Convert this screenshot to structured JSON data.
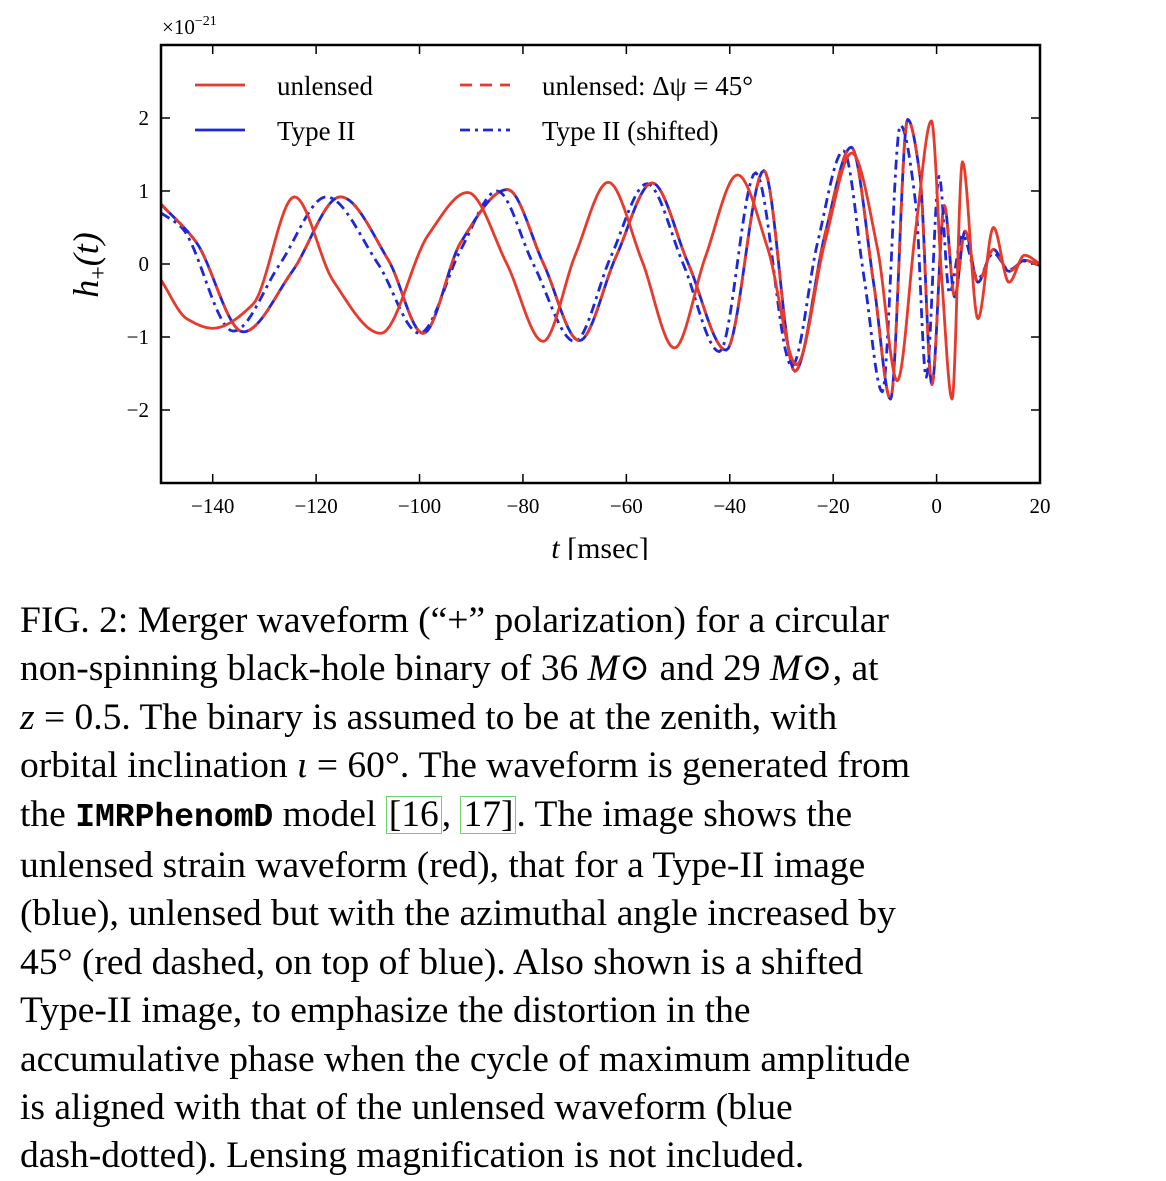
{
  "chart_data": {
    "type": "line",
    "x_label": "t [msec]",
    "y_label": "h+(t)",
    "y_multiplier": "×10−21",
    "xlim": [
      -150,
      20
    ],
    "ylim": [
      -3,
      3
    ],
    "x_ticks": [
      {
        "value": -140,
        "label": "−140"
      },
      {
        "value": -120,
        "label": "−120"
      },
      {
        "value": -100,
        "label": "−100"
      },
      {
        "value": -80,
        "label": "−80"
      },
      {
        "value": -60,
        "label": "−60"
      },
      {
        "value": -40,
        "label": "−40"
      },
      {
        "value": -20,
        "label": "−20"
      },
      {
        "value": 0,
        "label": "0"
      },
      {
        "value": 20,
        "label": "20"
      }
    ],
    "y_ticks": [
      {
        "value": 2,
        "label": "2"
      },
      {
        "value": 1,
        "label": "1"
      },
      {
        "value": 0,
        "label": "0"
      },
      {
        "value": -1,
        "label": "−1"
      },
      {
        "value": -2,
        "label": "−2"
      }
    ],
    "legend_position": "top-left",
    "series": [
      {
        "name": "unlensed",
        "color": "#e8392b",
        "style": "solid",
        "x": [
          -150,
          -145,
          -140,
          -132.2,
          -124.2,
          -116.7,
          -107.5,
          -98.3,
          -90.7,
          -83.1,
          -76.1,
          -69.9,
          -63.5,
          -57.0,
          -50.7,
          -44.7,
          -38.5,
          -32.6,
          -27.1,
          -21.6,
          -16.4,
          -11.4,
          -7.6,
          -4.0,
          -1.0,
          1.0,
          3.0,
          5.0,
          8.0,
          11.0,
          14.0,
          17.0,
          20.0
        ],
        "y": [
          -0.22,
          -0.75,
          -0.88,
          -0.55,
          0.92,
          -0.23,
          -0.95,
          0.4,
          0.98,
          0.0,
          -1.06,
          0.12,
          1.12,
          0.05,
          -1.15,
          0.1,
          1.22,
          0.2,
          -1.38,
          0.3,
          1.52,
          0.2,
          -1.6,
          0.5,
          1.96,
          -0.2,
          -1.85,
          1.4,
          -0.75,
          0.5,
          -0.25,
          0.12,
          0.0
        ]
      },
      {
        "name": "unlensed: Δψ = 45°",
        "color": "#e8392b",
        "style": "dashed",
        "x": [
          -150,
          -143.2,
          -134.1,
          -124.6,
          -115.3,
          -106.0,
          -99.3,
          -92.0,
          -83.0,
          -76.0,
          -69.1,
          -62.0,
          -55.0,
          -48.0,
          -40.7,
          -33.4,
          -27.4,
          -21.6,
          -16.5,
          -12.1,
          -8.9,
          -5.6,
          -3.2,
          -0.9,
          1.5,
          3.5,
          5.5,
          8.0,
          11.0,
          14.0,
          17.0,
          20.0
        ],
        "y": [
          0.82,
          0.3,
          -0.93,
          -0.1,
          0.92,
          0.05,
          -0.95,
          0.3,
          1.02,
          0.0,
          -1.05,
          0.1,
          1.11,
          0.0,
          -1.18,
          1.28,
          -1.47,
          0.4,
          1.6,
          -0.3,
          -1.85,
          1.98,
          1.2,
          -1.65,
          0.8,
          -0.45,
          0.45,
          -0.25,
          0.2,
          -0.1,
          0.05,
          -0.02
        ]
      },
      {
        "name": "Type II",
        "color": "#1f27d6",
        "style": "solid",
        "x": [
          -150,
          -143.2,
          -134.1,
          -124.6,
          -115.3,
          -106.0,
          -99.3,
          -92.0,
          -83.0,
          -76.0,
          -69.1,
          -62.0,
          -55.0,
          -48.0,
          -40.7,
          -33.4,
          -27.4,
          -21.6,
          -16.5,
          -12.1,
          -8.9,
          -5.6,
          -3.2,
          -0.9,
          1.5,
          3.5,
          5.5,
          8.0,
          11.0,
          14.0,
          17.0,
          20.0
        ],
        "y": [
          0.82,
          0.3,
          -0.93,
          -0.1,
          0.92,
          0.05,
          -0.95,
          0.3,
          1.02,
          0.0,
          -1.05,
          0.1,
          1.11,
          0.0,
          -1.18,
          1.28,
          -1.47,
          0.4,
          1.6,
          -0.3,
          -1.85,
          1.98,
          1.2,
          -1.65,
          0.8,
          -0.45,
          0.45,
          -0.25,
          0.2,
          -0.1,
          0.05,
          -0.02
        ]
      },
      {
        "name": "Type II (shifted)",
        "color": "#1f27d6",
        "style": "dashdot",
        "x": [
          -150,
          -146.0,
          -136.0,
          -127.0,
          -118.0,
          -108.0,
          -100.0,
          -92.0,
          -85.0,
          -78.0,
          -70.0,
          -63.0,
          -56.0,
          -49.0,
          -42.0,
          -35.0,
          -28.0,
          -23.0,
          -18.0,
          -14.0,
          -10.5,
          -7.0,
          -4.0,
          -2.0,
          0.5,
          2.5,
          5.0,
          8.0,
          11.0,
          14.0,
          17.0,
          20.0
        ],
        "y": [
          0.7,
          0.5,
          -0.92,
          0.0,
          0.92,
          0.0,
          -0.95,
          0.2,
          1.0,
          0.0,
          -1.06,
          0.1,
          1.1,
          0.0,
          -1.2,
          1.25,
          -1.4,
          0.3,
          1.55,
          -0.2,
          -1.75,
          1.9,
          0.8,
          -1.55,
          1.2,
          -0.4,
          0.4,
          -0.2,
          0.15,
          -0.08,
          0.04,
          -0.02
        ]
      }
    ]
  },
  "caption": {
    "lines": [
      [
        {
          "t": "FIG. 2:  Merger waveform (“+” polarization) for a circular"
        }
      ],
      [
        {
          "t": "non-spinning black-hole binary of 36 "
        },
        {
          "t": "M",
          "it": true
        },
        {
          "t": "⊙ and 29 "
        },
        {
          "t": "M",
          "it": true
        },
        {
          "t": "⊙, at"
        }
      ],
      [
        {
          "t": "z",
          "it": true
        },
        {
          "t": " = 0.5.  The binary is assumed to be at the zenith, with"
        }
      ],
      [
        {
          "t": "orbital inclination "
        },
        {
          "t": "ι",
          "it": true
        },
        {
          "t": " = 60°.  The waveform is generated from"
        }
      ],
      [
        {
          "t": "the "
        },
        {
          "t": "IMRPhenomD",
          "mono": true
        },
        {
          "t": " model "
        },
        {
          "t": "[16",
          "ref": true
        },
        {
          "t": ", "
        },
        {
          "t": "17]",
          "ref": true
        },
        {
          "t": ".  The image shows the"
        }
      ],
      [
        {
          "t": "unlensed strain waveform (red), that for a Type-II image"
        }
      ],
      [
        {
          "t": "(blue), unlensed but with the azimuthal angle increased by"
        }
      ],
      [
        {
          "t": "45° (red dashed, on top of blue).  Also shown is a shifted"
        }
      ],
      [
        {
          "t": "Type-II image, to emphasize the distortion in the"
        }
      ],
      [
        {
          "t": "accumulative phase when the cycle of maximum amplitude"
        }
      ],
      [
        {
          "t": "is aligned with that of the unlensed waveform (blue"
        }
      ],
      [
        {
          "t": "dash-dotted).  Lensing magnification is not included."
        }
      ]
    ]
  }
}
